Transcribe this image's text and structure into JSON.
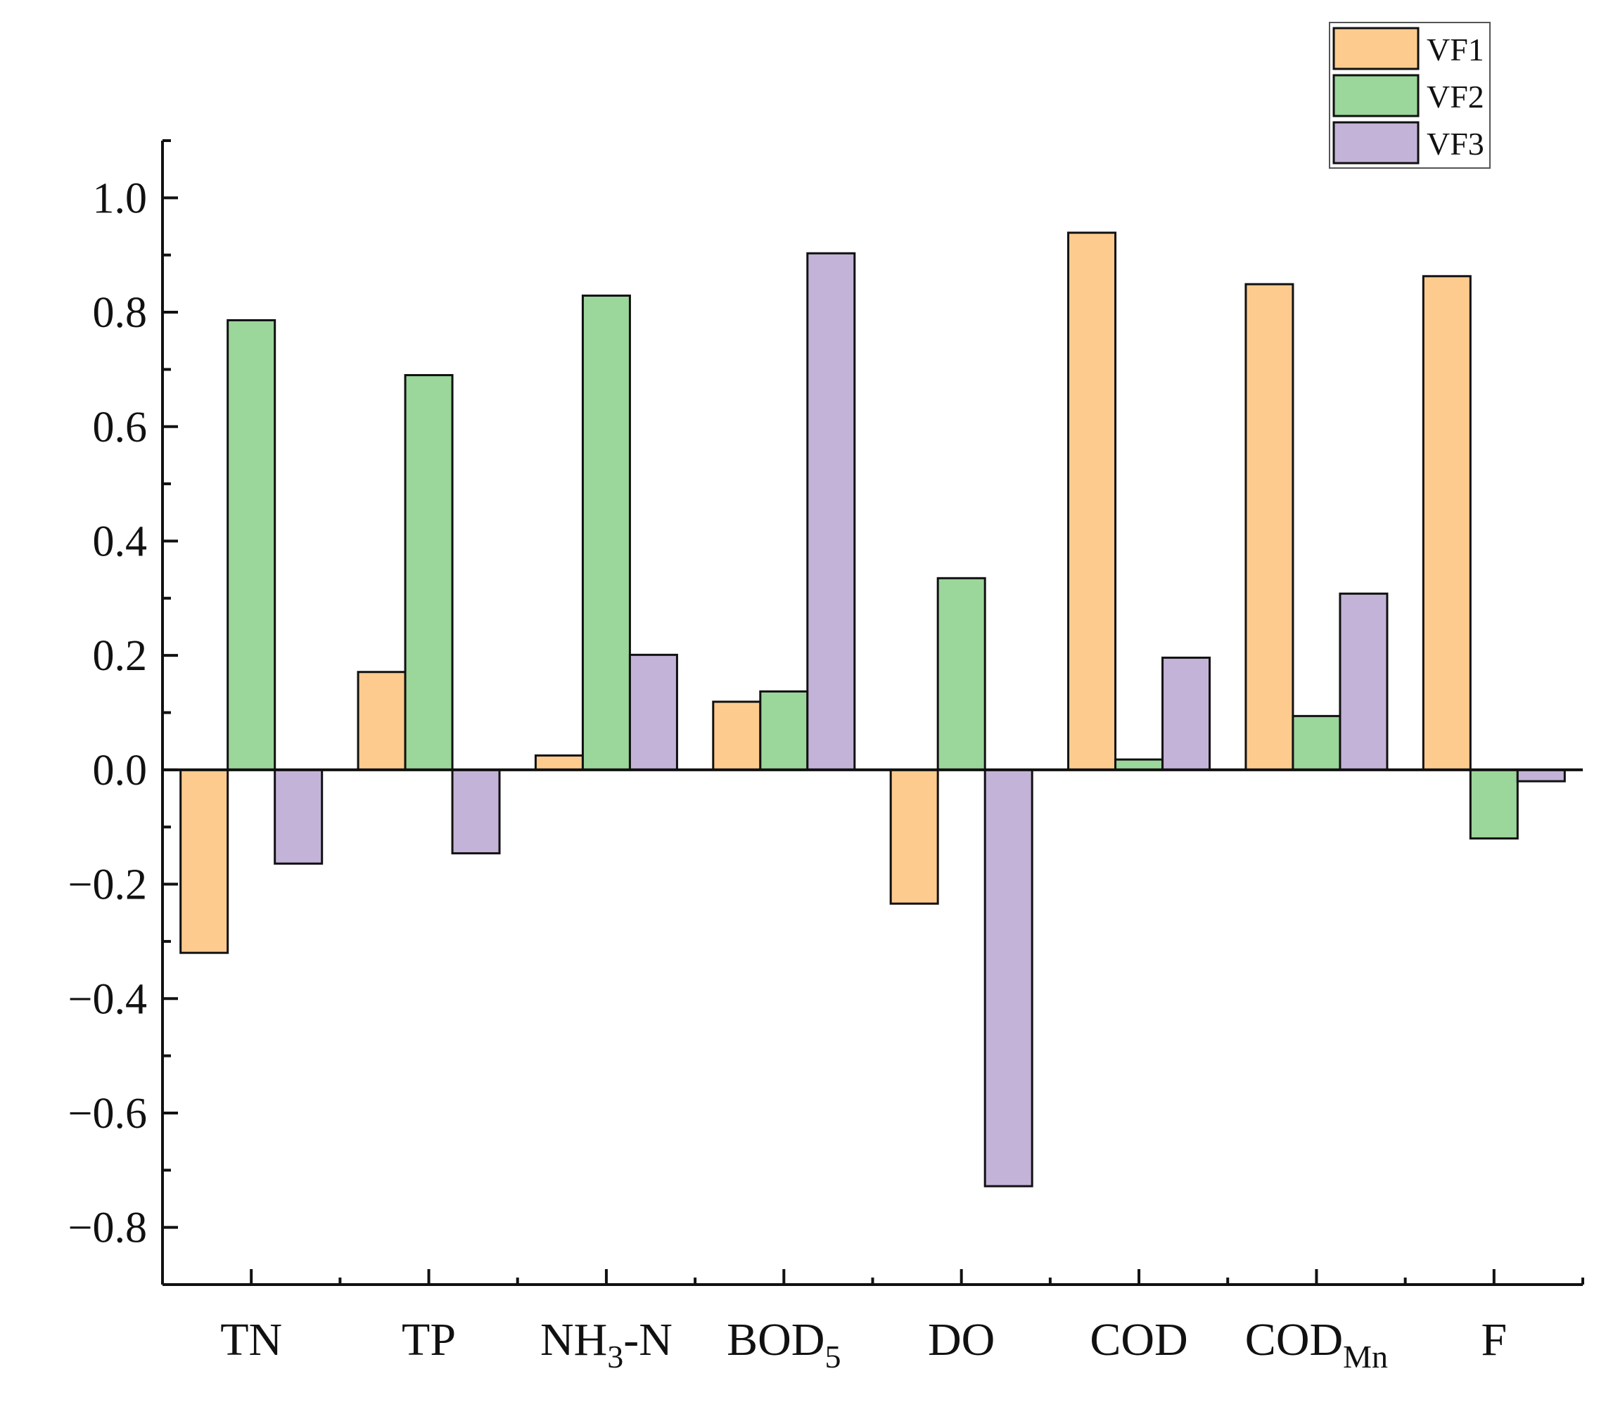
{
  "chart_data": {
    "type": "bar",
    "title": "",
    "xlabel": "",
    "ylabel": "",
    "ylim": [
      -0.9,
      1.1
    ],
    "yticks": [
      -0.8,
      -0.6,
      -0.4,
      -0.2,
      0.0,
      0.2,
      0.4,
      0.6,
      0.8,
      1.0
    ],
    "ytick_labels": [
      "−0.8",
      "−0.6",
      "−0.4",
      "−0.2",
      "0.0",
      "0.2",
      "0.4",
      "0.6",
      "0.8",
      "1.0"
    ],
    "categories": [
      {
        "main": "TN",
        "sub": "",
        "tail": ""
      },
      {
        "main": "TP",
        "sub": "",
        "tail": ""
      },
      {
        "main": "NH",
        "sub": "3",
        "tail": "-N"
      },
      {
        "main": "BOD",
        "sub": "5",
        "tail": ""
      },
      {
        "main": "DO",
        "sub": "",
        "tail": ""
      },
      {
        "main": "COD",
        "sub": "",
        "tail": ""
      },
      {
        "main": "COD",
        "sub": "Mn",
        "tail": ""
      },
      {
        "main": "F",
        "sub": "",
        "tail": ""
      }
    ],
    "series": [
      {
        "name": "VF1",
        "color": "#fecb8e",
        "values": [
          -0.32,
          0.171,
          0.025,
          0.119,
          -0.234,
          0.939,
          0.849,
          0.863
        ]
      },
      {
        "name": "VF2",
        "color": "#9bd69a",
        "values": [
          0.786,
          0.69,
          0.829,
          0.137,
          0.335,
          0.018,
          0.094,
          -0.12
        ]
      },
      {
        "name": "VF3",
        "color": "#c4b3d8",
        "values": [
          -0.164,
          -0.146,
          0.201,
          0.903,
          -0.728,
          0.196,
          0.308,
          -0.02
        ]
      }
    ],
    "grid": false,
    "legend_position": "top-right"
  }
}
